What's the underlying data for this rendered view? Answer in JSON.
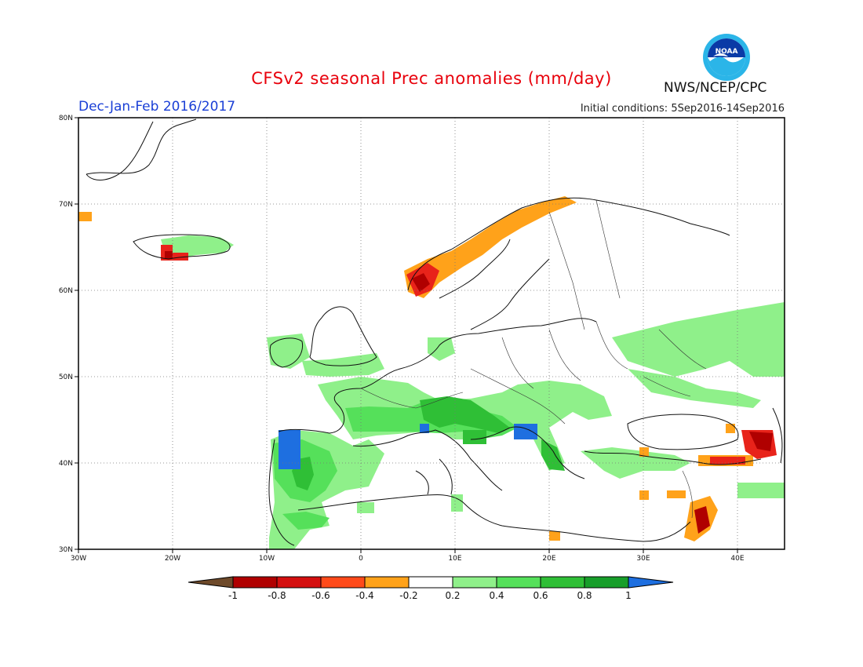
{
  "header": {
    "title": "CFSv2 seasonal Prec anomalies (mm/day)",
    "period": "Dec-Jan-Feb 2016/2017",
    "initial_conditions": "Initial conditions: 5Sep2016-14Sep2016",
    "agency": "NWS/NCEP/CPC",
    "logo_text": "NOAA"
  },
  "axes": {
    "lon_labels": [
      "30W",
      "20W",
      "10W",
      "0",
      "10E",
      "20E",
      "30E",
      "40E"
    ],
    "lat_labels": [
      "80N",
      "70N",
      "60N",
      "50N",
      "40N",
      "30N"
    ]
  },
  "colorbar": {
    "labels": [
      "-1",
      "-0.8",
      "-0.6",
      "-0.4",
      "-0.2",
      "0.2",
      "0.4",
      "0.6",
      "0.8",
      "1"
    ],
    "colors": [
      "#6e4a2a",
      "#b00000",
      "#e8231a",
      "#ff5a1f",
      "#ffa21a",
      "#ffffff",
      "#8ff08a",
      "#55e05a",
      "#2fbf36",
      "#179e2a",
      "#1e6fe0"
    ]
  },
  "anomaly_colors": {
    "dark_red": "#b00000",
    "red": "#e8231a",
    "orange": "#ffa21a",
    "light_green": "#8ff08a",
    "green": "#55e05a",
    "mid_green": "#2fbf36",
    "dark_green": "#179e2a",
    "blue": "#1e6fe0"
  }
}
